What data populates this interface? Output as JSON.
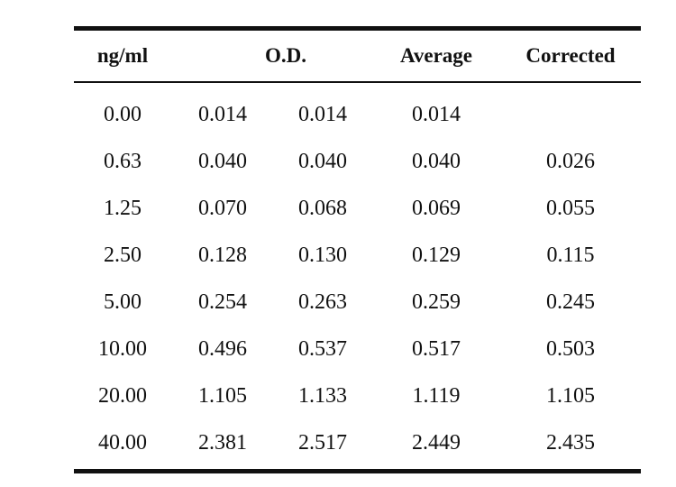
{
  "table": {
    "headers": {
      "concentration": "ng/ml",
      "od": "O.D.",
      "average": "Average",
      "corrected": "Corrected"
    },
    "rows": [
      {
        "conc": "0.00",
        "od1": "0.014",
        "od2": "0.014",
        "avg": "0.014",
        "corr": ""
      },
      {
        "conc": "0.63",
        "od1": "0.040",
        "od2": "0.040",
        "avg": "0.040",
        "corr": "0.026"
      },
      {
        "conc": "1.25",
        "od1": "0.070",
        "od2": "0.068",
        "avg": "0.069",
        "corr": "0.055"
      },
      {
        "conc": "2.50",
        "od1": "0.128",
        "od2": "0.130",
        "avg": "0.129",
        "corr": "0.115"
      },
      {
        "conc": "5.00",
        "od1": "0.254",
        "od2": "0.263",
        "avg": "0.259",
        "corr": "0.245"
      },
      {
        "conc": "10.00",
        "od1": "0.496",
        "od2": "0.537",
        "avg": "0.517",
        "corr": "0.503"
      },
      {
        "conc": "20.00",
        "od1": "1.105",
        "od2": "1.133",
        "avg": "1.119",
        "corr": "1.105"
      },
      {
        "conc": "40.00",
        "od1": "2.381",
        "od2": "2.517",
        "avg": "2.449",
        "corr": "2.435"
      }
    ]
  }
}
